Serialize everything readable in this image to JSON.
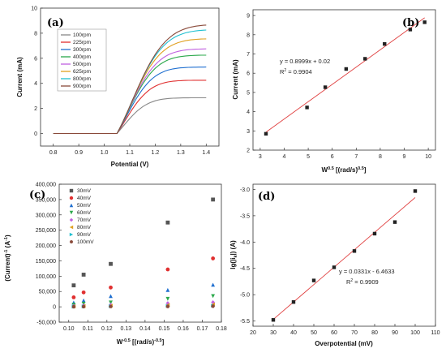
{
  "chart_data": [
    {
      "type": "line",
      "panel_label": "(a)",
      "xlabel": "Potential (V)",
      "ylabel": "Current (mA)",
      "xlim": [
        0.75,
        1.45
      ],
      "ylim": [
        -1,
        10
      ],
      "xticks": [
        "0.8",
        "0.9",
        "1.0",
        "1.1",
        "1.2",
        "1.3",
        "1.4"
      ],
      "yticks": [
        "0",
        "2",
        "4",
        "6",
        "8",
        "10"
      ],
      "legend_position": "top-left",
      "series": [
        {
          "name": "100rpm",
          "color": "#888888",
          "plateau": 2.85
        },
        {
          "name": "225rpm",
          "color": "#e03030",
          "plateau": 4.25
        },
        {
          "name": "300rpm",
          "color": "#1f6fd0",
          "plateau": 5.3
        },
        {
          "name": "400rpm",
          "color": "#2aa84a",
          "plateau": 6.25
        },
        {
          "name": "500rpm",
          "color": "#c060e0",
          "plateau": 6.75
        },
        {
          "name": "625rpm",
          "color": "#e0a020",
          "plateau": 7.55
        },
        {
          "name": "800rpm",
          "color": "#20c0d0",
          "plateau": 8.25
        },
        {
          "name": "900rpm",
          "color": "#8a4a3a",
          "plateau": 8.65
        }
      ],
      "onset_potential": 1.05
    },
    {
      "type": "scatter",
      "panel_label": "(b)",
      "xlabel": "W",
      "xlabel_sup": "0.5",
      "xlabel_rest": " [(rad/s)",
      "xlabel_sup2": "0.5",
      "xlabel_end": "]",
      "ylabel": "Current (mA)",
      "xlim": [
        2.7,
        10.3
      ],
      "ylim": [
        2,
        9.3
      ],
      "xticks": [
        "3",
        "4",
        "5",
        "6",
        "7",
        "8",
        "9",
        "10"
      ],
      "yticks": [
        "2",
        "3",
        "4",
        "5",
        "6",
        "7",
        "8",
        "9"
      ],
      "x": [
        3.24,
        4.95,
        5.71,
        6.58,
        7.37,
        8.18,
        9.25,
        9.85
      ],
      "y": [
        2.85,
        4.22,
        5.27,
        6.22,
        6.75,
        7.52,
        8.27,
        8.65
      ],
      "fit": {
        "slope": 0.8999,
        "intercept": 0.02,
        "x_range": [
          3.24,
          9.85
        ]
      },
      "equation": "y = 0.8999x + 0.02",
      "r2_label": "R",
      "r2_sup": "2",
      "r2_value": " = 0.9904",
      "marker_color": "#222222",
      "line_color": "#e04040"
    },
    {
      "type": "scatter",
      "panel_label": "(c)",
      "xlabel": "W",
      "xlabel_sup": "-0.5",
      "xlabel_rest": " [(rad/s)",
      "xlabel_sup2": "-0.5",
      "xlabel_end": "]",
      "ylabel": "(Current)",
      "ylabel_sup": "-1",
      "ylabel_end": " (A",
      "ylabel_sup2": "-1",
      "ylabel_close": ")",
      "xlim": [
        0.095,
        0.18
      ],
      "ylim": [
        -50000,
        400000
      ],
      "xticks": [
        "0.10",
        "0.11",
        "0.12",
        "0.13",
        "0.14",
        "0.15",
        "0.16",
        "0.17",
        "0.18"
      ],
      "yticks": [
        "-50,000",
        "0",
        "50,000",
        "100,000",
        "150,000",
        "200,000",
        "250,000",
        "300,000",
        "350,000",
        "400,000"
      ],
      "x": [
        0.1026,
        0.1078,
        0.122,
        0.1519,
        0.1756
      ],
      "series": [
        {
          "name": "30mV",
          "color": "#555555",
          "marker": "square",
          "values": [
            70000,
            105000,
            140000,
            275000,
            350000
          ]
        },
        {
          "name": "40mV",
          "color": "#e03030",
          "marker": "circle",
          "values": [
            31000,
            47000,
            63000,
            122000,
            158000
          ]
        },
        {
          "name": "50mV",
          "color": "#1f6fd0",
          "marker": "triangle-up",
          "values": [
            14000,
            21000,
            35000,
            55000,
            72000
          ]
        },
        {
          "name": "60mV",
          "color": "#2aa84a",
          "marker": "triangle-down",
          "values": [
            7000,
            10000,
            14000,
            26000,
            35000
          ]
        },
        {
          "name": "70mV",
          "color": "#c060e0",
          "marker": "diamond",
          "values": [
            3000,
            5000,
            7000,
            12000,
            15000
          ]
        },
        {
          "name": "80mV",
          "color": "#e0a020",
          "marker": "triangle-left",
          "values": [
            1500,
            2500,
            4000,
            6000,
            8000
          ]
        },
        {
          "name": "90mV",
          "color": "#20c0d0",
          "marker": "triangle-right",
          "values": [
            800,
            1200,
            2000,
            3000,
            4000
          ]
        },
        {
          "name": "100mV",
          "color": "#8a4a3a",
          "marker": "hexagon",
          "values": [
            300,
            500,
            900,
            1400,
            2000
          ]
        }
      ],
      "legend_position": "top-left"
    },
    {
      "type": "scatter",
      "panel_label": "(d)",
      "xlabel": "Overpotential (mV)",
      "ylabel": "lg(|i",
      "ylabel_sub": "k",
      "ylabel_end": "|) (A)",
      "xlim": [
        20,
        110
      ],
      "ylim": [
        -5.6,
        -2.9
      ],
      "xticks": [
        "20",
        "30",
        "40",
        "50",
        "60",
        "70",
        "80",
        "90",
        "100",
        "110"
      ],
      "yticks": [
        "-5.5",
        "-5.0",
        "-4.5",
        "-4.0",
        "-3.5",
        "-3.0"
      ],
      "x": [
        30,
        40,
        50,
        60,
        70,
        80,
        90,
        100
      ],
      "y": [
        -5.48,
        -5.14,
        -4.73,
        -4.48,
        -4.17,
        -3.84,
        -3.62,
        -3.03
      ],
      "fit": {
        "slope": 0.0331,
        "intercept": -6.4633,
        "x_range": [
          30,
          100
        ]
      },
      "equation": "y = 0.0331x - 6.4633",
      "r2_label": "R",
      "r2_sup": "2",
      "r2_value": " = 0.9909",
      "marker_color": "#222222",
      "line_color": "#e04040"
    }
  ]
}
